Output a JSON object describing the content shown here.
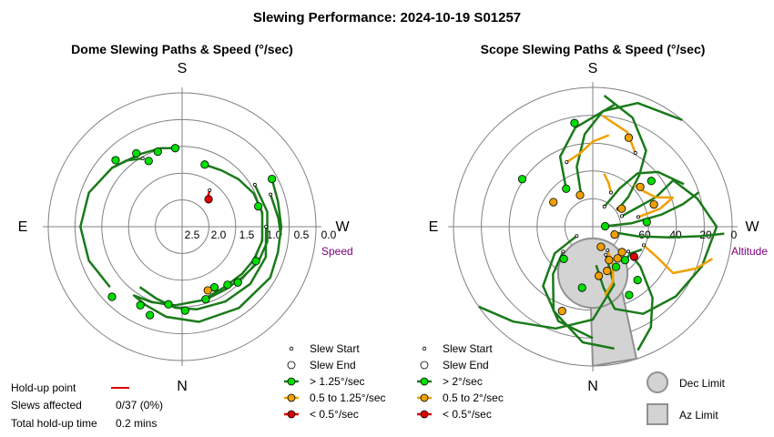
{
  "title": "Slewing Performance: 2024-10-19 S01257",
  "colors": {
    "fast": "#1a7a1a",
    "fast_fill": "#00dd00",
    "mid": "#f0a000",
    "mid_fill": "#f0a000",
    "slow": "#dd0000",
    "slow_fill": "#dd0000",
    "grid": "#808080",
    "limit_fill": "#d3d3d3",
    "limit_stroke": "#909090",
    "unit_label": "#800080"
  },
  "chart_data": [
    {
      "type": "polar-path",
      "title": "Dome Slewing Paths & Speed (°/sec)",
      "cardinals": {
        "top": "S",
        "bottom": "N",
        "left": "E",
        "right": "W"
      },
      "radial_axis": "Speed",
      "radial_ticks": [
        "2.5",
        "2.0",
        "1.5",
        "1.0",
        "0.5",
        "0.0"
      ],
      "radial_range_deg_per_sec": [
        0.0,
        2.5
      ],
      "grid_circles": 5,
      "legend": [
        {
          "symbol": "start",
          "label": "Slew Start"
        },
        {
          "symbol": "end",
          "label": "Slew End"
        },
        {
          "symbol": "fast",
          "label": "> 1.25°/sec"
        },
        {
          "symbol": "mid",
          "label": "0.5 to 1.25°/sec"
        },
        {
          "symbol": "slow",
          "label": "< 0.5°/sec"
        }
      ],
      "holdup": {
        "label_point": "Hold-up point",
        "label_slews": "Slews affected",
        "slews_value": "0/37 (0%)",
        "label_time": "Total hold-up time",
        "time_value": "0.2 mins"
      },
      "paths": [
        {
          "speed": "slow",
          "pts": [
            [
              -53,
              1.6
            ],
            [
              -50,
              1.7
            ],
            [
              -46,
              1.75
            ]
          ]
        },
        {
          "speed": "fast",
          "pts": [
            [
              -28,
              0.5
            ],
            [
              -15,
              0.55
            ],
            [
              0,
              0.55
            ],
            [
              15,
              0.55
            ],
            [
              30,
              0.5
            ],
            [
              55,
              0.55
            ],
            [
              80,
              0.6
            ],
            [
              100,
              0.7
            ],
            [
              115,
              0.8
            ],
            [
              125,
              0.85
            ],
            [
              112,
              0.9
            ],
            [
              95,
              0.95
            ],
            [
              75,
              1.0
            ],
            [
              55,
              1.05
            ],
            [
              38,
              1.0
            ],
            [
              25,
              0.95
            ],
            [
              10,
              0.9
            ],
            [
              -10,
              0.9
            ],
            [
              -25,
              0.95
            ],
            [
              -40,
              1.05
            ],
            [
              -55,
              1.15
            ],
            [
              -70,
              1.2
            ]
          ]
        },
        {
          "speed": "fast",
          "pts": [
            [
              -30,
              0.85
            ],
            [
              -10,
              0.8
            ],
            [
              10,
              0.8
            ],
            [
              25,
              0.85
            ],
            [
              40,
              0.95
            ],
            [
              55,
              1.0
            ],
            [
              70,
              1.0
            ]
          ]
        },
        {
          "speed": "fast",
          "pts": [
            [
              0,
              0.85
            ],
            [
              20,
              0.75
            ],
            [
              40,
              0.75
            ],
            [
              60,
              0.8
            ],
            [
              80,
              0.85
            ],
            [
              95,
              0.9
            ],
            [
              110,
              1.0
            ],
            [
              125,
              1.05
            ]
          ]
        },
        {
          "speed": "fast",
          "pts": [
            [
              -95,
              0.95
            ],
            [
              -105,
              0.9
            ],
            [
              -120,
              0.85
            ],
            [
              -140,
              0.7
            ],
            [
              -160,
              0.55
            ],
            [
              -180,
              0.5
            ],
            [
              160,
              0.55
            ],
            [
              140,
              0.65
            ]
          ]
        },
        {
          "speed": "fast",
          "pts": [
            [
              -20,
              0.65
            ],
            [
              -5,
              0.6
            ],
            [
              5,
              0.55
            ]
          ]
        },
        {
          "speed": "fast",
          "pts": [
            [
              -120,
              0.95
            ],
            [
              -130,
              0.8
            ],
            [
              -140,
              0.7
            ]
          ]
        }
      ],
      "markers": [
        {
          "speed": "slow",
          "pos": [
            -46,
            1.75
          ]
        },
        {
          "speed": "fast",
          "pos": [
            -28,
            0.5
          ]
        },
        {
          "speed": "fast",
          "pos": [
            -15,
            0.95
          ]
        },
        {
          "speed": "fast",
          "pos": [
            25,
            0.9
          ]
        },
        {
          "speed": "fast",
          "pos": [
            45,
            0.95
          ]
        },
        {
          "speed": "fast",
          "pos": [
            52,
            1.05
          ]
        },
        {
          "speed": "fast",
          "pos": [
            62,
            1.15
          ]
        },
        {
          "speed": "mid",
          "pos": [
            68,
            1.15
          ]
        },
        {
          "speed": "fast",
          "pos": [
            72,
            1.0
          ]
        },
        {
          "speed": "fast",
          "pos": [
            88,
            0.85
          ]
        },
        {
          "speed": "fast",
          "pos": [
            100,
            0.95
          ]
        },
        {
          "speed": "fast",
          "pos": [
            118,
            0.75
          ]
        },
        {
          "speed": "fast",
          "pos": [
            -70,
            1.2
          ]
        },
        {
          "speed": "fast",
          "pos": [
            -95,
            0.95
          ]
        },
        {
          "speed": "fast",
          "pos": [
            -108,
            0.95
          ]
        },
        {
          "speed": "fast",
          "pos": [
            -117,
            1.05
          ]
        },
        {
          "speed": "fast",
          "pos": [
            -122,
            0.8
          ]
        },
        {
          "speed": "fast",
          "pos": [
            -135,
            0.65
          ]
        },
        {
          "speed": "fast",
          "pos": [
            135,
            0.55
          ]
        },
        {
          "speed": "fast",
          "pos": [
            110,
            0.65
          ]
        }
      ]
    },
    {
      "type": "polar-path",
      "title": "Scope Slewing Paths & Speed (°/sec)",
      "cardinals": {
        "top": "S",
        "bottom": "N",
        "left": "E",
        "right": "W"
      },
      "radial_axis": "Altitude",
      "radial_ticks": [
        "60",
        "40",
        "20",
        "0"
      ],
      "radial_range_altitude_deg": [
        90,
        0
      ],
      "grid_circles": 5,
      "legend": [
        {
          "symbol": "start",
          "label": "Slew Start"
        },
        {
          "symbol": "end",
          "label": "Slew End"
        },
        {
          "symbol": "fast",
          "label": "> 2°/sec"
        },
        {
          "symbol": "mid",
          "label": "0.5 to 2°/sec"
        },
        {
          "symbol": "slow",
          "label": "< 0.5°/sec"
        }
      ],
      "limits_legend": [
        {
          "symbol": "dec",
          "label": "Dec Limit"
        },
        {
          "symbol": "az",
          "label": "Az Limit"
        }
      ],
      "paths": [
        {
          "speed": "fast",
          "pts": [
            [
              -2,
              8
            ],
            [
              -5,
              25
            ],
            [
              -10,
              45
            ],
            [
              -14,
              60
            ],
            [
              -18,
              72
            ]
          ]
        },
        {
          "speed": "fast",
          "pts": [
            [
              15,
              14
            ],
            [
              12,
              30
            ],
            [
              8,
              50
            ],
            [
              5,
              70
            ],
            [
              3,
              85
            ]
          ]
        },
        {
          "speed": "fast",
          "pts": [
            [
              -35,
              20
            ],
            [
              -40,
              30
            ],
            [
              -48,
              45
            ],
            [
              -55,
              60
            ],
            [
              -70,
              75
            ],
            [
              -85,
              85
            ]
          ]
        },
        {
          "speed": "fast",
          "pts": [
            [
              -20,
              20
            ],
            [
              -25,
              45
            ],
            [
              -30,
              60
            ],
            [
              -15,
              70
            ],
            [
              0,
              80
            ],
            [
              20,
              75
            ],
            [
              40,
              70
            ],
            [
              60,
              65
            ],
            [
              75,
              55
            ],
            [
              80,
              40
            ],
            [
              85,
              25
            ]
          ]
        },
        {
          "speed": "fast",
          "pts": [
            [
              35,
              28
            ],
            [
              40,
              40
            ],
            [
              50,
              60
            ],
            [
              60,
              75
            ],
            [
              70,
              85
            ]
          ]
        },
        {
          "speed": "fast",
          "pts": [
            [
              65,
              20
            ],
            [
              70,
              40
            ],
            [
              90,
              60
            ],
            [
              110,
              70
            ],
            [
              130,
              80
            ],
            [
              145,
              90
            ]
          ]
        },
        {
          "speed": "fast",
          "pts": [
            [
              -110,
              22
            ],
            [
              -105,
              40
            ],
            [
              -95,
              60
            ],
            [
              -85,
              75
            ],
            [
              -70,
              85
            ],
            [
              -50,
              90
            ]
          ]
        },
        {
          "speed": "fast",
          "pts": [
            [
              -125,
              30
            ],
            [
              -115,
              50
            ],
            [
              -100,
              65
            ],
            [
              -80,
              80
            ]
          ]
        },
        {
          "speed": "fast",
          "pts": [
            [
              140,
              25
            ],
            [
              130,
              40
            ],
            [
              115,
              60
            ],
            [
              95,
              75
            ],
            [
              80,
              80
            ]
          ]
        },
        {
          "speed": "fast",
          "pts": [
            [
              150,
              12
            ],
            [
              145,
              30
            ],
            [
              130,
              50
            ],
            [
              110,
              65
            ],
            [
              90,
              72
            ]
          ]
        },
        {
          "speed": "fast",
          "pts": [
            [
              -60,
              15
            ],
            [
              -55,
              30
            ],
            [
              -50,
              45
            ],
            [
              -40,
              55
            ],
            [
              -25,
              65
            ]
          ]
        },
        {
          "speed": "fast",
          "pts": [
            [
              45,
              30
            ],
            [
              35,
              30
            ],
            [
              25,
              35
            ]
          ]
        },
        {
          "speed": "mid",
          "pts": [
            [
              -12,
              30
            ],
            [
              -15,
              45
            ],
            [
              -20,
              55
            ],
            [
              -25,
              45
            ],
            [
              -35,
              40
            ],
            [
              -45,
              38
            ]
          ]
        },
        {
          "speed": "mid",
          "pts": [
            [
              20,
              35
            ],
            [
              25,
              45
            ],
            [
              30,
              60
            ],
            [
              22,
              72
            ],
            [
              15,
              80
            ]
          ]
        },
        {
          "speed": "mid",
          "pts": [
            [
              58,
              18
            ],
            [
              62,
              28
            ],
            [
              70,
              38
            ],
            [
              80,
              45
            ]
          ]
        },
        {
          "speed": "mid",
          "pts": [
            [
              -112,
              45
            ],
            [
              -100,
              48
            ],
            [
              -90,
              55
            ],
            [
              -80,
              60
            ]
          ]
        },
        {
          "speed": "mid",
          "pts": [
            [
              -62,
              25
            ],
            [
              -70,
              30
            ],
            [
              -78,
              35
            ]
          ]
        },
        {
          "speed": "mid",
          "pts": [
            [
              -60,
              55
            ],
            [
              -70,
              65
            ],
            [
              -85,
              72
            ]
          ]
        }
      ],
      "markers": [
        {
          "speed": "fast",
          "pos": [
            -2,
            8
          ]
        },
        {
          "speed": "mid",
          "pos": [
            20,
            15
          ]
        },
        {
          "speed": "fast",
          "pos": [
            -5,
            35
          ]
        },
        {
          "speed": "mid",
          "pos": [
            -32,
            22
          ]
        },
        {
          "speed": "mid",
          "pos": [
            -20,
            42
          ]
        },
        {
          "speed": "mid",
          "pos": [
            -40,
            40
          ]
        },
        {
          "speed": "fast",
          "pos": [
            -38,
            48
          ]
        },
        {
          "speed": "slow",
          "pos": [
            36,
            33
          ]
        },
        {
          "speed": "mid",
          "pos": [
            41,
            25
          ]
        },
        {
          "speed": "fast",
          "pos": [
            46,
            30
          ]
        },
        {
          "speed": "mid",
          "pos": [
            52,
            26
          ]
        },
        {
          "speed": "fast",
          "pos": [
            60,
            30
          ]
        },
        {
          "speed": "mid",
          "pos": [
            64,
            24
          ]
        },
        {
          "speed": "mid",
          "pos": [
            68,
            14
          ]
        },
        {
          "speed": "mid",
          "pos": [
            72,
            30
          ]
        },
        {
          "speed": "fast",
          "pos": [
            50,
            45
          ]
        },
        {
          "speed": "fast",
          "pos": [
            62,
            50
          ]
        },
        {
          "speed": "mid",
          "pos": [
            83,
            32
          ]
        },
        {
          "speed": "fast",
          "pos": [
            100,
            40
          ]
        },
        {
          "speed": "mid",
          "pos": [
            -112,
            22
          ]
        },
        {
          "speed": "fast",
          "pos": [
            -125,
            30
          ]
        },
        {
          "speed": "mid",
          "pos": [
            -148,
            30
          ]
        },
        {
          "speed": "fast",
          "pos": [
            -146,
            55
          ]
        },
        {
          "speed": "fast",
          "pos": [
            -100,
            68
          ]
        },
        {
          "speed": "mid",
          "pos": [
            -68,
            62
          ]
        },
        {
          "speed": "fast",
          "pos": [
            132,
            28
          ]
        },
        {
          "speed": "mid",
          "pos": [
            110,
            58
          ]
        }
      ],
      "dec_limit_center_altdeg_az": [
        -180,
        60
      ],
      "dec_limit_radius_alt_deg": 22
    }
  ]
}
